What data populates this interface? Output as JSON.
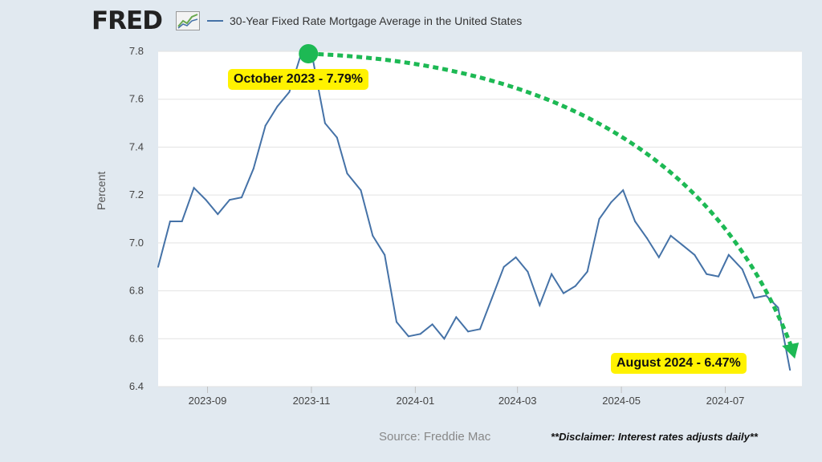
{
  "brand": "FRED",
  "legend_label": "30-Year Fixed Rate Mortgage Average in the United States",
  "source": "Source: Freddie Mac",
  "disclaimer": "**Disclaimer: Interest rates adjusts daily**",
  "callouts": {
    "start": "October 2023 - 7.79%",
    "end": "August 2024 - 6.47%"
  },
  "colors": {
    "series": "#4572a7",
    "trend_arrow": "#1db954",
    "callout_bg": "#fff200",
    "plot_bg": "#ffffff",
    "page_bg": "#e1e9f0"
  },
  "chart_data": {
    "type": "line",
    "title": "",
    "xlabel": "",
    "ylabel": "Percent",
    "ylim": [
      6.4,
      7.8
    ],
    "yticks": [
      6.4,
      6.6,
      6.8,
      7.0,
      7.2,
      7.4,
      7.6,
      7.8
    ],
    "ytick_labels": [
      "6.4",
      "6.6",
      "6.8",
      "7.0",
      "7.2",
      "7.4",
      "7.6",
      "7.8"
    ],
    "xticks": [
      "2023-09-01",
      "2023-11-01",
      "2024-01-01",
      "2024-03-01",
      "2024-05-01",
      "2024-07-01"
    ],
    "xtick_labels": [
      "2023-09",
      "2023-11",
      "2024-01",
      "2024-03",
      "2024-05",
      "2024-07"
    ],
    "xlim": [
      "2023-08-03",
      "2024-08-15"
    ],
    "grid": true,
    "legend": "top",
    "series": [
      {
        "name": "30-Year Fixed Rate Mortgage Average in the United States",
        "x": [
          "2023-08-03",
          "2023-08-10",
          "2023-08-17",
          "2023-08-24",
          "2023-08-31",
          "2023-09-07",
          "2023-09-14",
          "2023-09-21",
          "2023-09-28",
          "2023-10-05",
          "2023-10-12",
          "2023-10-19",
          "2023-10-26",
          "2023-11-02",
          "2023-11-09",
          "2023-11-16",
          "2023-11-22",
          "2023-11-30",
          "2023-12-07",
          "2023-12-14",
          "2023-12-21",
          "2023-12-28",
          "2024-01-04",
          "2024-01-11",
          "2024-01-18",
          "2024-01-25",
          "2024-02-01",
          "2024-02-08",
          "2024-02-15",
          "2024-02-22",
          "2024-02-29",
          "2024-03-07",
          "2024-03-14",
          "2024-03-21",
          "2024-03-28",
          "2024-04-04",
          "2024-04-11",
          "2024-04-18",
          "2024-04-25",
          "2024-05-02",
          "2024-05-09",
          "2024-05-16",
          "2024-05-23",
          "2024-05-30",
          "2024-06-06",
          "2024-06-13",
          "2024-06-20",
          "2024-06-27",
          "2024-07-03",
          "2024-07-11",
          "2024-07-18",
          "2024-07-25",
          "2024-08-01",
          "2024-08-08"
        ],
        "values": [
          6.9,
          7.09,
          7.09,
          7.23,
          7.18,
          7.12,
          7.18,
          7.19,
          7.31,
          7.49,
          7.57,
          7.63,
          7.79,
          7.76,
          7.5,
          7.44,
          7.29,
          7.22,
          7.03,
          6.95,
          6.67,
          6.61,
          6.62,
          6.66,
          6.6,
          6.69,
          6.63,
          6.64,
          6.77,
          6.9,
          6.94,
          6.88,
          6.74,
          6.87,
          6.79,
          6.82,
          6.88,
          7.1,
          7.17,
          7.22,
          7.09,
          7.02,
          6.94,
          7.03,
          6.99,
          6.95,
          6.87,
          6.86,
          6.95,
          6.89,
          6.77,
          6.78,
          6.73,
          6.47
        ]
      }
    ]
  }
}
